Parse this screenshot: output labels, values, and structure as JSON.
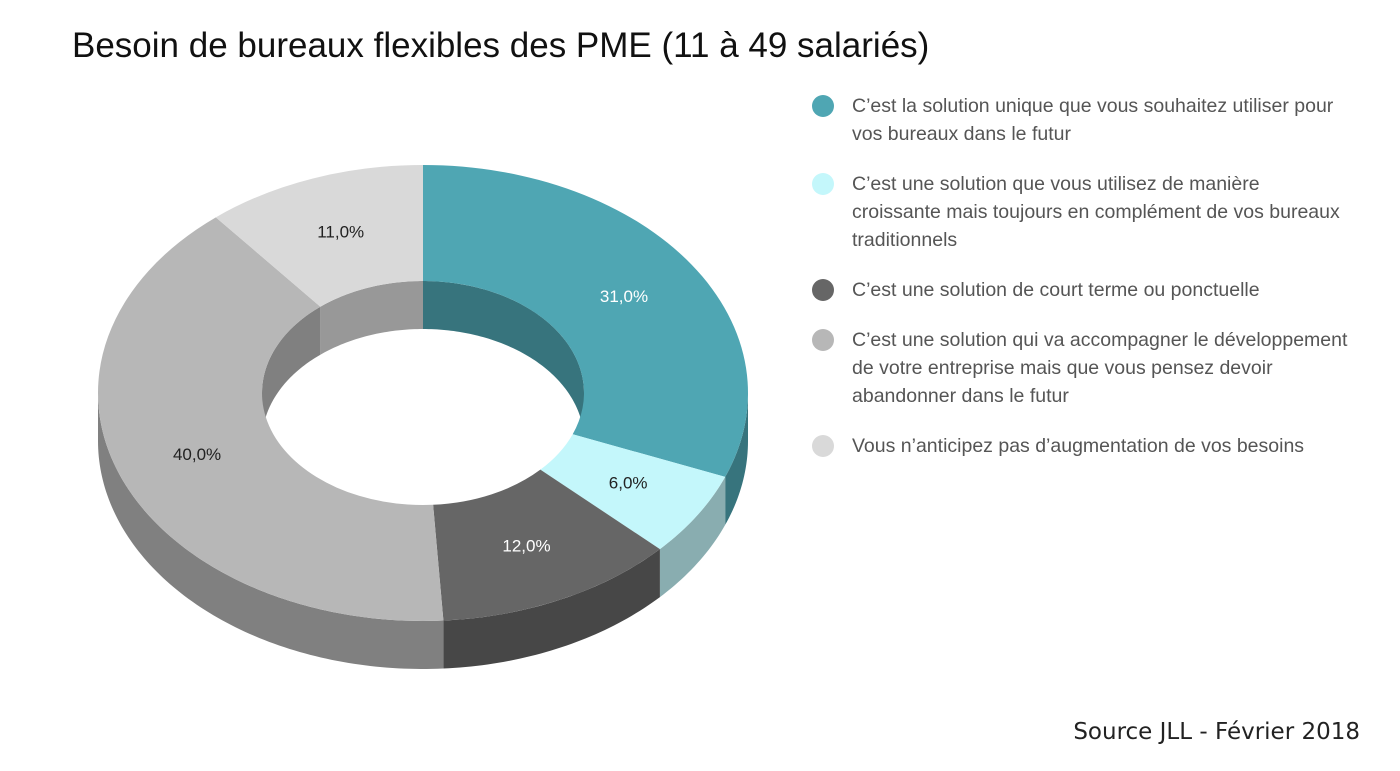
{
  "chart_data": {
    "type": "donut",
    "title": "Besoin de bureaux flexibles des PME (11 à 49 salariés)",
    "categories": [
      "C’est la solution unique que vous souhaitez utiliser pour vos bureaux dans le futur",
      "C’est une solution que vous utilisez de manière croissante mais toujours en complément de vos bureaux traditionnels",
      "C’est une solution de court terme ou ponctuelle",
      "C’est une solution qui va accompagner le développement de votre entreprise mais que vous pensez devoir abandonner dans le futur",
      "Vous n’anticipez pas d’augmentation de vos besoins"
    ],
    "values": [
      31,
      6,
      12,
      40,
      11
    ],
    "value_labels": [
      "31,0%",
      "6,0%",
      "12,0%",
      "40,0%",
      "11,0%"
    ],
    "colors": [
      "#4fa6b3",
      "#c4f7fb",
      "#666666",
      "#b7b7b7",
      "#d9d9d9"
    ],
    "source": "Source JLL - Février 2018"
  }
}
